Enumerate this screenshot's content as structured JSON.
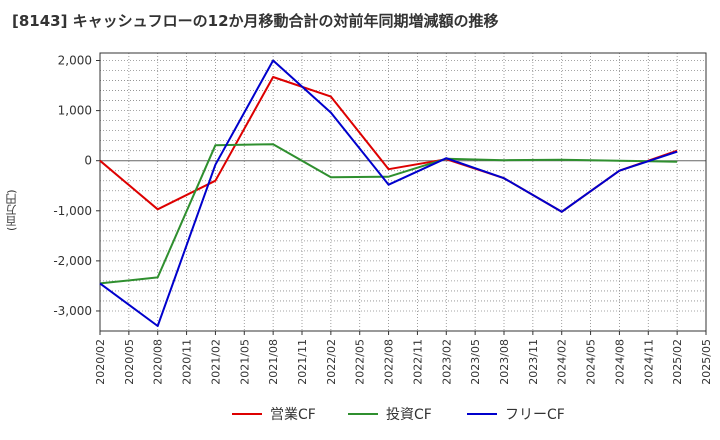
{
  "title": "[8143]  キャッシュフローの12か月移動合計の対前年同期増減額の推移",
  "chart_data": {
    "type": "line",
    "title": "[8143]  キャッシュフローの12か月移動合計の対前年同期増減額の推移",
    "xlabel": "",
    "ylabel": "(百万円)",
    "ylim": [
      -3400,
      2150
    ],
    "yticks": [
      2000,
      1000,
      0,
      -1000,
      -2000,
      -3000
    ],
    "ytick_labels": [
      "2,000",
      "1,000",
      "0",
      "-1,000",
      "-2,000",
      "-3,000"
    ],
    "x_categories": [
      "2020/02",
      "2020/05",
      "2020/08",
      "2020/11",
      "2021/02",
      "2021/05",
      "2021/08",
      "2021/11",
      "2022/02",
      "2022/05",
      "2022/08",
      "2022/11",
      "2023/02",
      "2023/05",
      "2023/08",
      "2023/11",
      "2024/02",
      "2024/05",
      "2024/08",
      "2024/11",
      "2025/02",
      "2025/05"
    ],
    "grid": true,
    "legend_position": "bottom",
    "series": [
      {
        "name": "営業CF",
        "color": "#dd0000",
        "x": [
          "2020/02",
          "2020/08",
          "2021/02",
          "2021/08",
          "2022/02",
          "2022/08",
          "2023/02",
          "2023/08",
          "2024/02",
          "2024/08",
          "2025/02"
        ],
        "values": [
          0,
          -970,
          -400,
          1670,
          1280,
          -170,
          30,
          -350,
          -1020,
          -200,
          200
        ]
      },
      {
        "name": "投資CF",
        "color": "#2f8f2f",
        "x": [
          "2020/02",
          "2020/08",
          "2021/02",
          "2021/08",
          "2022/02",
          "2022/08",
          "2023/02",
          "2023/08",
          "2024/02",
          "2024/08",
          "2025/02"
        ],
        "values": [
          -2450,
          -2330,
          310,
          330,
          -330,
          -320,
          40,
          10,
          20,
          0,
          -20
        ]
      },
      {
        "name": "フリーCF",
        "color": "#0000cc",
        "x": [
          "2020/02",
          "2020/08",
          "2021/02",
          "2021/08",
          "2022/02",
          "2022/08",
          "2023/02",
          "2023/08",
          "2024/02",
          "2024/08",
          "2025/02"
        ],
        "values": [
          -2450,
          -3300,
          -80,
          2000,
          960,
          -480,
          50,
          -350,
          -1020,
          -200,
          180
        ]
      }
    ]
  }
}
